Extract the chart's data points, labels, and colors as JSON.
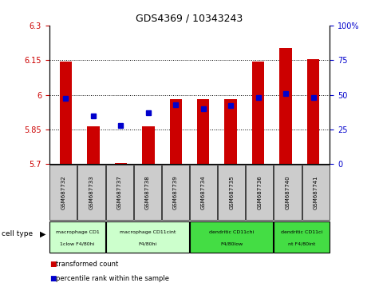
{
  "title": "GDS4369 / 10343243",
  "samples": [
    "GSM687732",
    "GSM687733",
    "GSM687737",
    "GSM687738",
    "GSM687739",
    "GSM687734",
    "GSM687735",
    "GSM687736",
    "GSM687740",
    "GSM687741"
  ],
  "red_values": [
    6.143,
    5.862,
    5.706,
    5.862,
    5.982,
    5.982,
    5.982,
    6.143,
    6.202,
    6.153
  ],
  "blue_values": [
    47.5,
    35,
    28,
    37,
    43,
    40,
    42,
    48,
    51,
    48
  ],
  "ylim_left": [
    5.7,
    6.3
  ],
  "ylim_right": [
    0,
    100
  ],
  "yticks_left": [
    5.7,
    5.85,
    6.0,
    6.15,
    6.3
  ],
  "ytick_labels_left": [
    "5.7",
    "5.85",
    "6",
    "6.15",
    "6.3"
  ],
  "yticks_right": [
    0,
    25,
    50,
    75,
    100
  ],
  "ytick_labels_right": [
    "0",
    "25",
    "50",
    "75",
    "100%"
  ],
  "red_color": "#cc0000",
  "blue_color": "#0000cc",
  "bar_width": 0.45,
  "blue_marker_size": 5,
  "cell_type_groups": [
    {
      "label": "macrophage CD1\n1clow F4/80hi",
      "start": 0,
      "end": 2,
      "color": "#ccffcc"
    },
    {
      "label": "macrophage CD11cint\nF4/80hi",
      "start": 2,
      "end": 5,
      "color": "#ccffcc"
    },
    {
      "label": "dendritic CD11chi\nF4/80low",
      "start": 5,
      "end": 8,
      "color": "#44dd44"
    },
    {
      "label": "dendritic CD11ci\nnt F4/80int",
      "start": 8,
      "end": 10,
      "color": "#44dd44"
    }
  ],
  "grid_yticks": [
    5.85,
    6.0,
    6.15
  ],
  "legend_red": "transformed count",
  "legend_blue": "percentile rank within the sample",
  "red_color_hex": "#cc0000",
  "blue_color_hex": "#0000cc",
  "bg_color": "#ffffff",
  "tick_bg_color": "#cccccc"
}
